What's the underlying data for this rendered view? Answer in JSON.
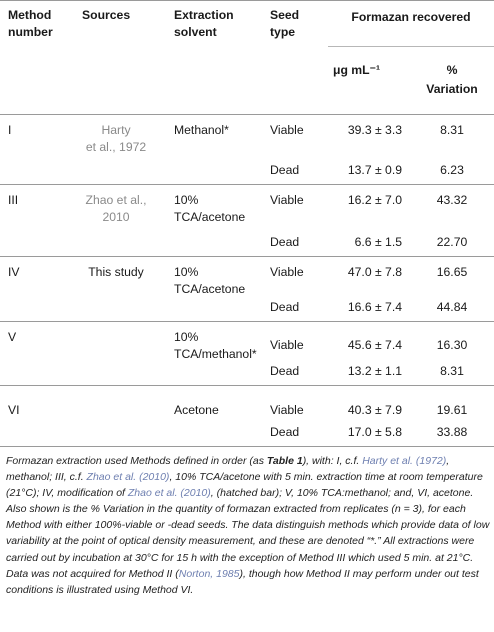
{
  "headers": {
    "method": [
      "Method",
      "number"
    ],
    "sources": "Sources",
    "extraction": [
      "Extraction",
      "solvent"
    ],
    "seed": [
      "Seed",
      "type"
    ],
    "formazan": "Formazan recovered",
    "ugml": "μg mL⁻¹",
    "variation": [
      "%",
      "Variation"
    ]
  },
  "rows": {
    "i": {
      "num": "I",
      "src1": "Harty",
      "src2": "et al., 1972",
      "solvent1": "Methanol*",
      "t1": "Viable",
      "v1": "39.3 ± 3.3",
      "p1": "8.31",
      "t2": "Dead",
      "v2": "13.7 ± 0.9",
      "p2": "6.23"
    },
    "iii": {
      "num": "III",
      "src1": "Zhao et al.,",
      "src2": "2010",
      "solvent1": "10%",
      "solvent2": "TCA/acetone",
      "t1": "Viable",
      "v1": "16.2 ± 7.0",
      "p1": "43.32",
      "t2": "Dead",
      "v2": "6.6 ± 1.5",
      "p2": "22.70"
    },
    "iv": {
      "num": "IV",
      "src1": "This study",
      "solvent1": "10%",
      "solvent2": "TCA/acetone",
      "t1": "Viable",
      "v1": "47.0 ± 7.8",
      "p1": "16.65",
      "t2": "Dead",
      "v2": "16.6 ± 7.4",
      "p2": "44.84"
    },
    "v": {
      "num": "V",
      "solvent1": "10%",
      "solvent2": "TCA/methanol*",
      "t1": "Viable",
      "v1": "45.6 ± 7.4",
      "p1": "16.30",
      "t2": "Dead",
      "v2": "13.2 ± 1.1",
      "p2": "8.31"
    },
    "vi": {
      "num": "VI",
      "solvent1": "Acetone",
      "t1": "Viable",
      "v1": "40.3 ± 7.9",
      "p1": "19.61",
      "t2": "Dead",
      "v2": "17.0 ± 5.8",
      "p2": "33.88"
    }
  },
  "caption": {
    "a1": "Formazan extraction used Methods defined in order (as ",
    "table_ref": "Table 1",
    "a2": "), with: I, c.f. ",
    "ref_harty": "Harty et al. (1972)",
    "a3": ", methanol; III, c.f. ",
    "ref_zhao1": "Zhao et al. (2010)",
    "a4": ", 10% TCA/acetone with 5 min. extraction time at room temperature (21°C); IV, modification of ",
    "ref_zhao2": "Zhao et al. (2010)",
    "a5": ", (hatched bar); V, 10% TCA:methanol; and, VI, acetone. Also shown is the % Variation in the quantity of formazan extracted from replicates (n = 3), for each Method with either 100%-viable or -dead seeds. The data distinguish methods which provide data of low variability at the point of optical density measurement, and these are denoted “*.” All extractions were carried out by incubation at 30°C for 15 h with the exception of Method III which used 5 min. at 21°C. Data was not acquired for Method II (",
    "ref_norton": "Norton, 1985",
    "a6": "), though how Method II may perform under out test conditions is illustrated using Method VI."
  }
}
